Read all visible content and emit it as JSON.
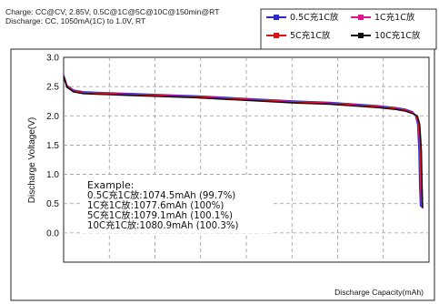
{
  "conditions": {
    "charge": "Charge: CC@CV, 2.85V, 0.5C@1C@5C@10C@150min@RT",
    "discharge": "Discharge: CC, 1050mA(1C) to 1.0V, RT"
  },
  "example": {
    "title": "Example:",
    "lines": [
      "0.5C充1C放:1074.5mAh (99.7%)",
      "1C充1C放:1077.6mAh (100%)",
      "5C充1C放:1079.1mAh (100.1%)",
      "10C充1C放:1080.9mAh (100.3%)"
    ]
  },
  "chart_data": {
    "type": "line",
    "xlabel": "Discharge Capacity(mAh)",
    "ylabel": "Discharge Voltage(V)",
    "ylim": [
      -0.5,
      3.0
    ],
    "yticks": [
      "3.0",
      "2.5",
      "2.0",
      "1.5",
      "1.0",
      "0.5",
      "0.0"
    ],
    "xlim": [
      0,
      1100
    ],
    "grid": true,
    "legend_position": "top-right",
    "series": [
      {
        "name": "0.5C充1C放",
        "color": "#2a2ad0",
        "x": [
          0,
          10,
          30,
          60,
          100,
          200,
          300,
          400,
          500,
          600,
          700,
          800,
          900,
          950,
          1000,
          1030,
          1050,
          1060,
          1066,
          1070,
          1072,
          1074.5
        ],
        "y": [
          2.7,
          2.52,
          2.44,
          2.41,
          2.4,
          2.38,
          2.36,
          2.34,
          2.31,
          2.28,
          2.25,
          2.23,
          2.19,
          2.17,
          2.14,
          2.11,
          2.07,
          2.0,
          1.85,
          1.4,
          0.8,
          0.45
        ]
      },
      {
        "name": "1C充1C放",
        "color": "#e0158c",
        "x": [
          0,
          10,
          30,
          60,
          100,
          200,
          300,
          400,
          500,
          600,
          700,
          800,
          900,
          950,
          1000,
          1030,
          1050,
          1062,
          1068,
          1073,
          1075,
          1077.6
        ],
        "y": [
          2.69,
          2.51,
          2.43,
          2.4,
          2.39,
          2.37,
          2.35,
          2.33,
          2.3,
          2.27,
          2.24,
          2.22,
          2.18,
          2.16,
          2.13,
          2.1,
          2.06,
          2.0,
          1.85,
          1.4,
          0.8,
          0.44
        ]
      },
      {
        "name": "5C充1C放",
        "color": "#e01010",
        "x": [
          0,
          10,
          30,
          60,
          100,
          200,
          300,
          400,
          500,
          600,
          700,
          800,
          900,
          950,
          1000,
          1030,
          1050,
          1063,
          1070,
          1075,
          1077,
          1079.1
        ],
        "y": [
          2.68,
          2.5,
          2.42,
          2.39,
          2.38,
          2.36,
          2.34,
          2.32,
          2.29,
          2.26,
          2.23,
          2.21,
          2.17,
          2.15,
          2.12,
          2.09,
          2.05,
          2.0,
          1.85,
          1.4,
          0.8,
          0.43
        ]
      },
      {
        "name": "10C充1C放",
        "color": "#111111",
        "x": [
          0,
          10,
          30,
          60,
          100,
          200,
          300,
          400,
          500,
          600,
          700,
          800,
          900,
          950,
          1000,
          1030,
          1050,
          1065,
          1072,
          1077,
          1079,
          1080.9
        ],
        "y": [
          2.67,
          2.49,
          2.41,
          2.38,
          2.37,
          2.35,
          2.33,
          2.31,
          2.28,
          2.25,
          2.22,
          2.2,
          2.16,
          2.14,
          2.11,
          2.08,
          2.04,
          2.0,
          1.85,
          1.4,
          0.8,
          0.42
        ]
      }
    ]
  }
}
